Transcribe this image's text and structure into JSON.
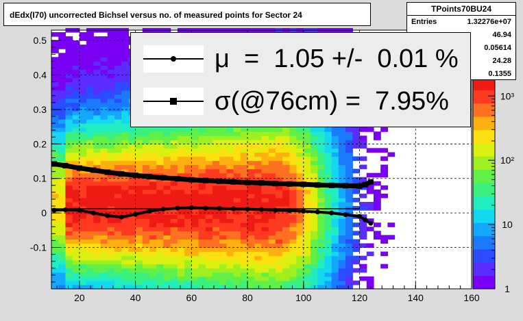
{
  "title": "dEdx(I70) uncorrected Bichsel versus no. of measured points for Sector 24",
  "stats": {
    "name": "TPoints70BU24",
    "rows": [
      {
        "label": "Entries",
        "value": "1.32276e+07"
      },
      {
        "label": "",
        "value": "46.94"
      },
      {
        "label": "",
        "value": "0.05614"
      },
      {
        "label": "",
        "value": "24.28"
      },
      {
        "label": "",
        "value": "0.1355"
      }
    ]
  },
  "legend": {
    "mu_text": "μ  =  1.05 +/-  0.01 %",
    "sigma_text": "σ(@76cm) =  7.95%"
  },
  "colors": {
    "frame_bg": "#dcdcdc",
    "plot_bg": "#ffffff",
    "marker": "#000000",
    "palette": [
      "#7a00f5",
      "#5a2cff",
      "#2a4bff",
      "#1a7bff",
      "#12a8ff",
      "#14d8f0",
      "#20eec0",
      "#3cf080",
      "#60f048",
      "#a0f020",
      "#dcf010",
      "#fde010",
      "#ffb010",
      "#ff7020",
      "#ff3a20",
      "#f01a14"
    ]
  },
  "chart_data": {
    "type": "heatmap",
    "title": "dEdx(I70) uncorrected Bichsel versus no. of measured points for Sector 24",
    "xlabel": "",
    "ylabel": "",
    "xlim": [
      10,
      160
    ],
    "ylim": [
      -0.22,
      0.53
    ],
    "x_ticks": [
      20,
      40,
      60,
      80,
      100,
      120,
      140,
      160
    ],
    "y_ticks": [
      -0.1,
      0,
      0.1,
      0.2,
      0.3,
      0.4,
      0.5
    ],
    "z_scale": "log",
    "z_range": [
      1,
      2000
    ],
    "z_ticks": [
      1,
      10,
      100,
      1000
    ],
    "z_tick_labels": [
      "1",
      "10",
      "10²",
      "10³"
    ],
    "grid": true,
    "series": [
      {
        "marker": "circle",
        "x": [
          11,
          15,
          20,
          25,
          30,
          35,
          40,
          45,
          50,
          55,
          60,
          65,
          70,
          75,
          80,
          85,
          90,
          95,
          100,
          105,
          110,
          115,
          120,
          122,
          124
        ],
        "y": [
          0.008,
          0.009,
          0.008,
          0.0,
          -0.008,
          -0.012,
          -0.004,
          0.005,
          0.011,
          0.014,
          0.015,
          0.014,
          0.013,
          0.012,
          0.011,
          0.01,
          0.008,
          0.007,
          0.005,
          0.003,
          0.0,
          -0.005,
          -0.01,
          -0.02,
          -0.03
        ]
      },
      {
        "marker": "square",
        "x": [
          11,
          15,
          20,
          25,
          30,
          35,
          40,
          45,
          50,
          55,
          60,
          65,
          70,
          75,
          80,
          85,
          90,
          95,
          100,
          105,
          110,
          115,
          120,
          122,
          124
        ],
        "y": [
          0.142,
          0.137,
          0.13,
          0.124,
          0.118,
          0.113,
          0.109,
          0.105,
          0.102,
          0.099,
          0.096,
          0.094,
          0.092,
          0.09,
          0.088,
          0.087,
          0.085,
          0.084,
          0.083,
          0.081,
          0.08,
          0.079,
          0.078,
          0.082,
          0.09
        ]
      }
    ],
    "fit_line": {
      "x": [
        10,
        120
      ],
      "y": [
        0.012,
        0.012
      ]
    }
  }
}
